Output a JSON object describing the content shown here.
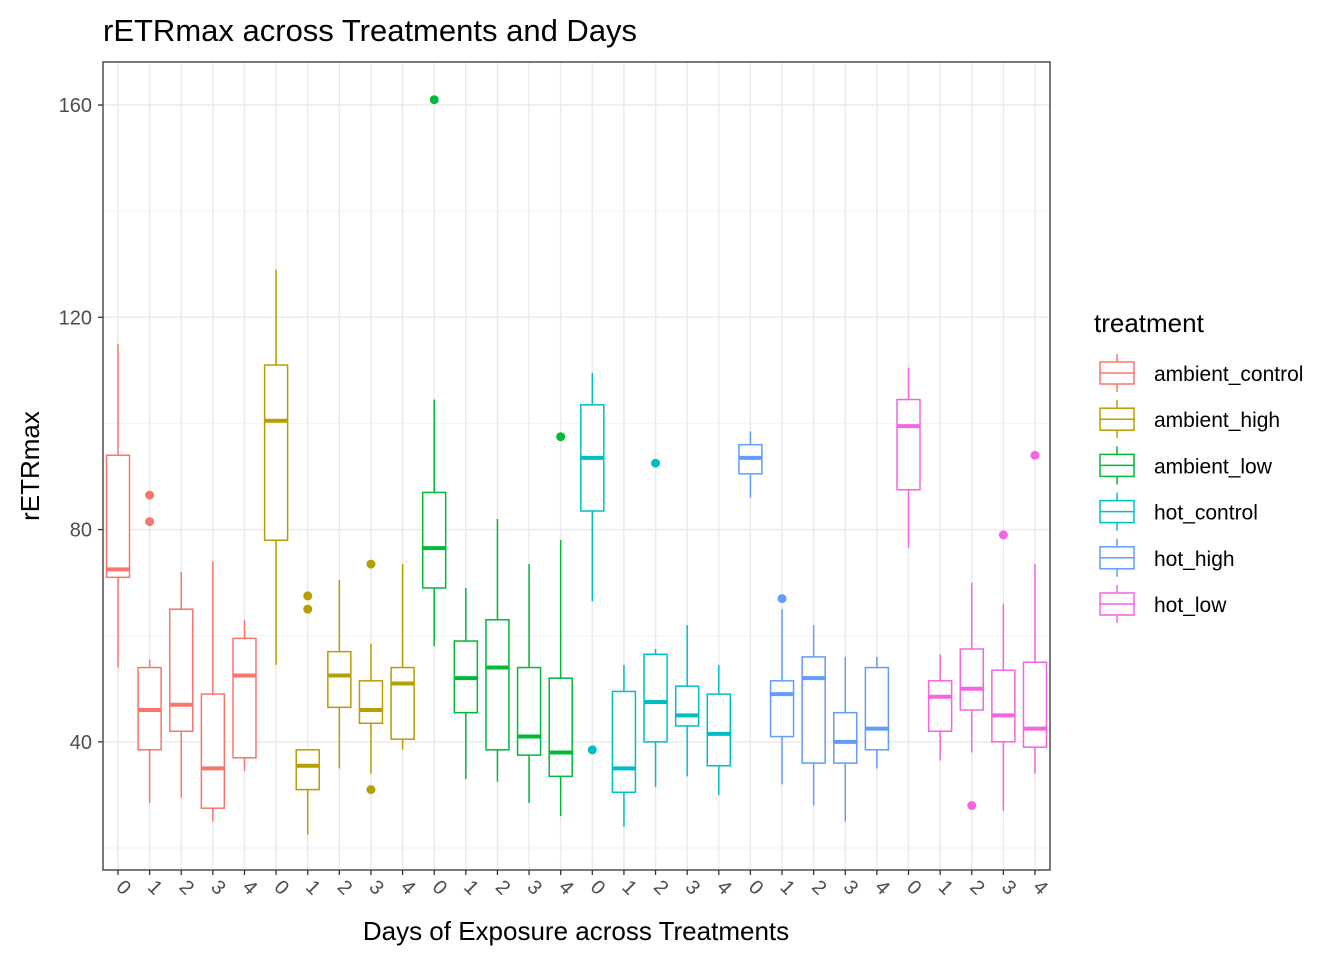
{
  "chart_data": {
    "type": "boxplot",
    "title": "rETRmax across Treatments and Days",
    "xlabel": "Days of Exposure across Treatments",
    "ylabel": "rETRmax",
    "ylim": [
      17.5,
      169
    ],
    "yticks": [
      40,
      80,
      120,
      160
    ],
    "grid": true,
    "legend": {
      "title": "treatment",
      "placement": "right"
    },
    "categories": [
      "0",
      "1",
      "2",
      "3",
      "4",
      "0",
      "1",
      "2",
      "3",
      "4",
      "0",
      "1",
      "2",
      "3",
      "4",
      "0",
      "1",
      "2",
      "3",
      "4",
      "0",
      "1",
      "2",
      "3",
      "4",
      "0",
      "1",
      "2",
      "3",
      "4"
    ],
    "series": [
      {
        "name": "ambient_control",
        "color": "#F8766D",
        "boxes": [
          {
            "day": "0",
            "min": 54,
            "q1": 71,
            "median": 72.5,
            "q3": 94,
            "max": 115,
            "outliers": []
          },
          {
            "day": "1",
            "min": 28.5,
            "q1": 38.5,
            "median": 46,
            "q3": 54,
            "max": 55.5,
            "outliers": [
              81.5,
              86.5
            ]
          },
          {
            "day": "2",
            "min": 29.5,
            "q1": 42,
            "median": 47,
            "q3": 65,
            "max": 72,
            "outliers": []
          },
          {
            "day": "3",
            "min": 25,
            "q1": 27.5,
            "median": 35,
            "q3": 49,
            "max": 74,
            "outliers": []
          },
          {
            "day": "4",
            "min": 34.5,
            "q1": 37,
            "median": 52.5,
            "q3": 59.5,
            "max": 63,
            "outliers": []
          }
        ]
      },
      {
        "name": "ambient_high",
        "color": "#B79F00",
        "boxes": [
          {
            "day": "0",
            "min": 54.5,
            "q1": 78,
            "median": 100.5,
            "q3": 111,
            "max": 129,
            "outliers": []
          },
          {
            "day": "1",
            "min": 22.5,
            "q1": 31,
            "median": 35.5,
            "q3": 38.5,
            "max": 38.5,
            "outliers": [
              65,
              67.5
            ]
          },
          {
            "day": "2",
            "min": 35,
            "q1": 46.5,
            "median": 52.5,
            "q3": 57,
            "max": 70.5,
            "outliers": []
          },
          {
            "day": "3",
            "min": 34,
            "q1": 43.5,
            "median": 46,
            "q3": 51.5,
            "max": 58.5,
            "outliers": [
              31,
              73.5
            ]
          },
          {
            "day": "4",
            "min": 38.5,
            "q1": 40.5,
            "median": 51,
            "q3": 54,
            "max": 73.5,
            "outliers": []
          }
        ]
      },
      {
        "name": "ambient_low",
        "color": "#00BA38",
        "boxes": [
          {
            "day": "0",
            "min": 58,
            "q1": 69,
            "median": 76.5,
            "q3": 87,
            "max": 104.5,
            "outliers": [
              161
            ]
          },
          {
            "day": "1",
            "min": 33,
            "q1": 45.5,
            "median": 52,
            "q3": 59,
            "max": 69,
            "outliers": []
          },
          {
            "day": "2",
            "min": 32.5,
            "q1": 38.5,
            "median": 54,
            "q3": 63,
            "max": 82,
            "outliers": []
          },
          {
            "day": "3",
            "min": 28.5,
            "q1": 37.5,
            "median": 41,
            "q3": 54,
            "max": 73.5,
            "outliers": []
          },
          {
            "day": "4",
            "min": 26,
            "q1": 33.5,
            "median": 38,
            "q3": 52,
            "max": 78,
            "outliers": [
              97.5
            ]
          }
        ]
      },
      {
        "name": "hot_control",
        "color": "#00BFC4",
        "boxes": [
          {
            "day": "0",
            "min": 66.5,
            "q1": 83.5,
            "median": 93.5,
            "q3": 103.5,
            "max": 109.5,
            "outliers": [
              38.5
            ]
          },
          {
            "day": "1",
            "min": 24,
            "q1": 30.5,
            "median": 35,
            "q3": 49.5,
            "max": 54.5,
            "outliers": []
          },
          {
            "day": "2",
            "min": 31.5,
            "q1": 40,
            "median": 47.5,
            "q3": 56.5,
            "max": 57.5,
            "outliers": [
              92.5
            ]
          },
          {
            "day": "3",
            "min": 33.5,
            "q1": 43,
            "median": 45,
            "q3": 50.5,
            "max": 62,
            "outliers": []
          },
          {
            "day": "4",
            "min": 30,
            "q1": 35.5,
            "median": 41.5,
            "q3": 49,
            "max": 54.5,
            "outliers": []
          }
        ]
      },
      {
        "name": "hot_high",
        "color": "#619CFF",
        "boxes": [
          {
            "day": "0",
            "min": 86,
            "q1": 90.5,
            "median": 93.5,
            "q3": 96,
            "max": 98.5,
            "outliers": []
          },
          {
            "day": "1",
            "min": 32,
            "q1": 41,
            "median": 49,
            "q3": 51.5,
            "max": 65,
            "outliers": [
              67
            ]
          },
          {
            "day": "2",
            "min": 28,
            "q1": 36,
            "median": 52,
            "q3": 56,
            "max": 62,
            "outliers": []
          },
          {
            "day": "3",
            "min": 25,
            "q1": 36,
            "median": 40,
            "q3": 45.5,
            "max": 56,
            "outliers": []
          },
          {
            "day": "4",
            "min": 35,
            "q1": 38.5,
            "median": 42.5,
            "q3": 54,
            "max": 56,
            "outliers": []
          }
        ]
      },
      {
        "name": "hot_low",
        "color": "#F564E3",
        "boxes": [
          {
            "day": "0",
            "min": 76.5,
            "q1": 87.5,
            "median": 99.5,
            "q3": 104.5,
            "max": 110.5,
            "outliers": []
          },
          {
            "day": "1",
            "min": 36.5,
            "q1": 42,
            "median": 48.5,
            "q3": 51.5,
            "max": 56.5,
            "outliers": []
          },
          {
            "day": "2",
            "min": 38,
            "q1": 46,
            "median": 50,
            "q3": 57.5,
            "max": 70,
            "outliers": [
              28
            ]
          },
          {
            "day": "3",
            "min": 27,
            "q1": 40,
            "median": 45,
            "q3": 53.5,
            "max": 66,
            "outliers": [
              79
            ]
          },
          {
            "day": "4",
            "min": 34,
            "q1": 39,
            "median": 42.5,
            "q3": 55,
            "max": 73.5,
            "outliers": [
              94
            ]
          }
        ]
      }
    ]
  }
}
